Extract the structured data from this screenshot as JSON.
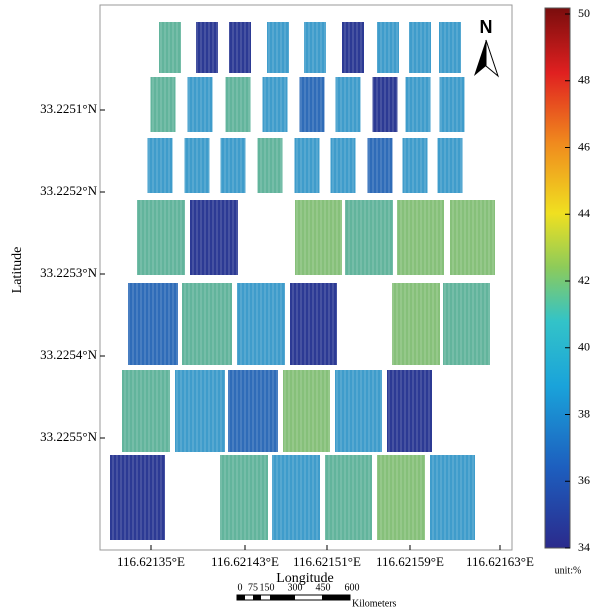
{
  "map": {
    "y_axis": {
      "title": "Latitude",
      "ticks": [
        "33.2251°N",
        "33.2252°N",
        "33.2253°N",
        "33.2254°N",
        "33.2255°N"
      ]
    },
    "x_axis": {
      "title": "Longitude",
      "ticks": [
        "116.62135°E",
        "116.62143°E",
        "116.62151°E",
        "116.62159°E",
        "116.62163°E"
      ]
    },
    "colorbar": {
      "ticks": [
        50,
        48,
        46,
        44,
        42,
        40,
        38,
        36,
        34
      ],
      "unit": "unit:%"
    },
    "north": "N",
    "scale_bar": {
      "labels": [
        "0",
        "75",
        "150",
        "300",
        "450",
        "600"
      ],
      "unit": "Kilometers"
    }
  }
}
